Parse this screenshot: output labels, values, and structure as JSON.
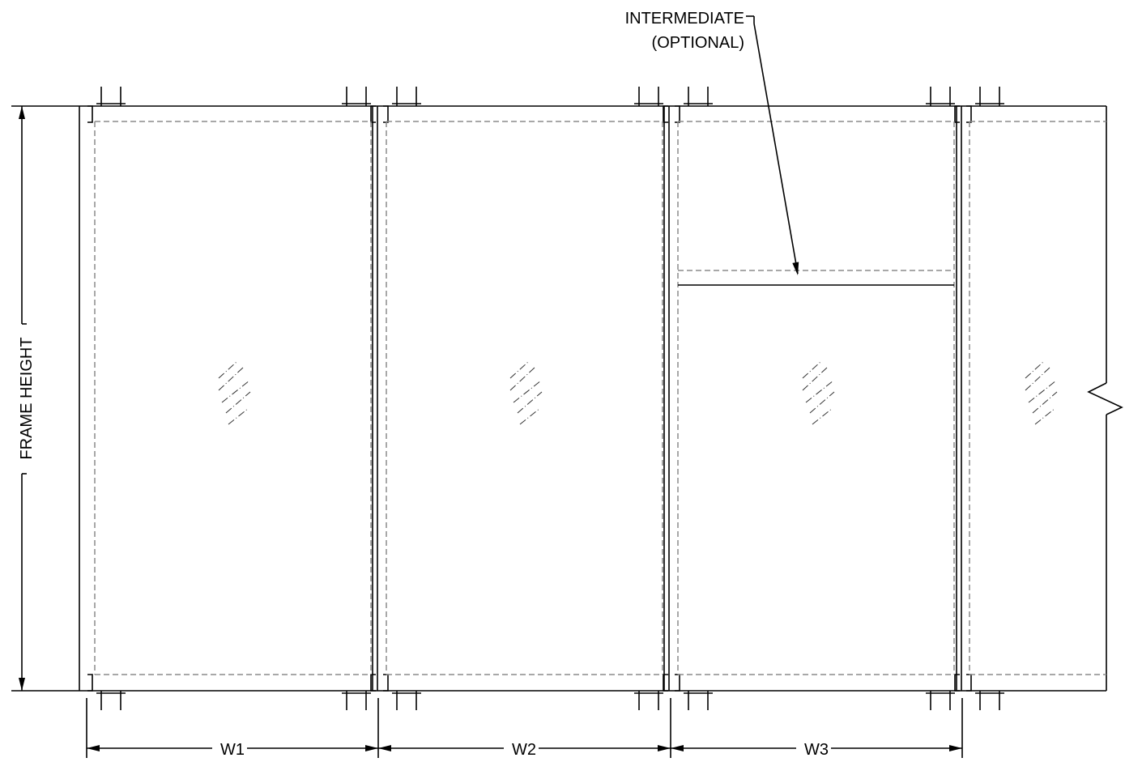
{
  "labels": {
    "intermediate_line1": "INTERMEDIATE",
    "intermediate_line2": "(OPTIONAL)",
    "frame_height": "FRAME HEIGHT",
    "w1": "W1",
    "w2": "W2",
    "w3": "W3"
  },
  "colors": {
    "line": "#000000",
    "hidden_line": "#8c8c8c",
    "background": "#ffffff"
  }
}
